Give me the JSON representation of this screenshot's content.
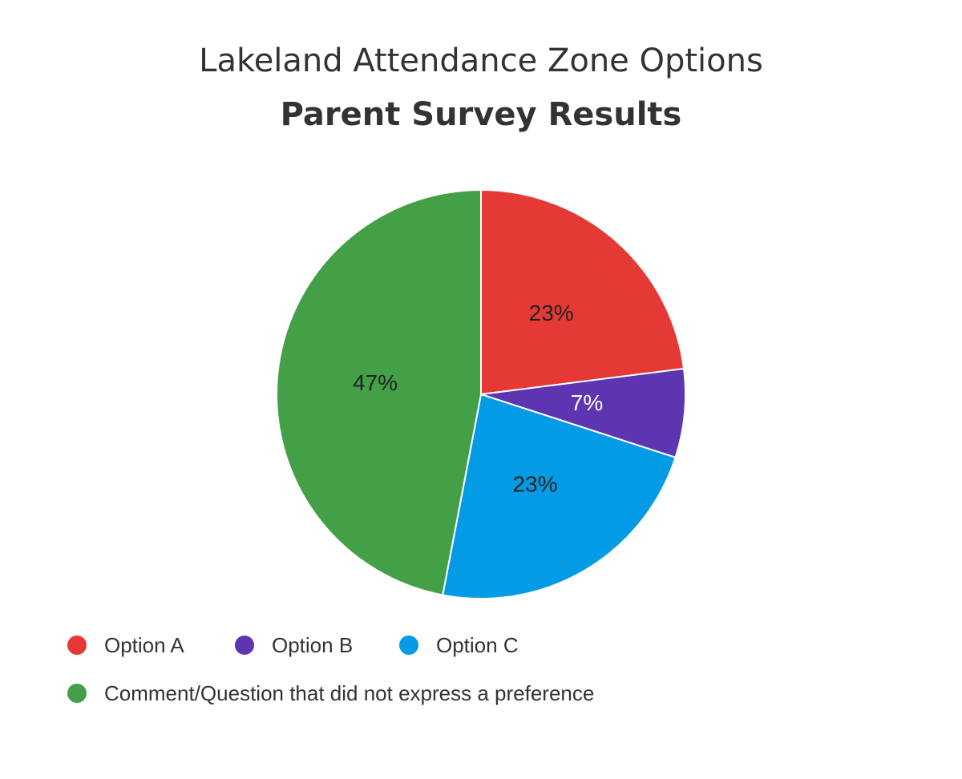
{
  "chart_data": {
    "type": "pie",
    "title": "Lakeland Attendance Zone Options",
    "subtitle": "Parent Survey Results",
    "categories": [
      "Option A",
      "Option B",
      "Option C",
      "Comment/Question that did not express a preference"
    ],
    "values": [
      23,
      7,
      23,
      47
    ],
    "value_labels": [
      "23%",
      "7%",
      "23%",
      "47%"
    ],
    "colors": [
      "#e53935",
      "#5e35b1",
      "#039be5",
      "#43a047"
    ],
    "label_colors": [
      "#222222",
      "#ffffff",
      "#222222",
      "#222222"
    ]
  }
}
